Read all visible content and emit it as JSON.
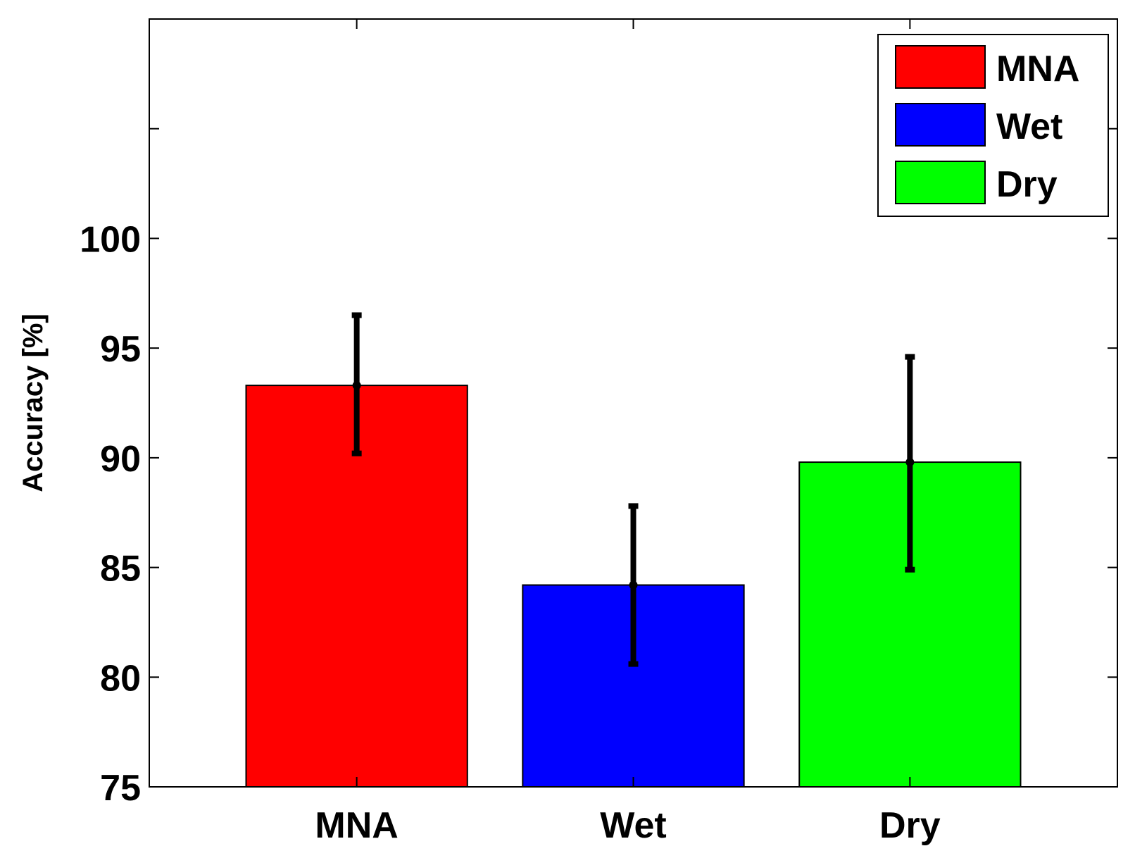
{
  "chart_data": {
    "type": "bar",
    "title": "",
    "xlabel": "",
    "ylabel": "Accuracy [%]",
    "ylim": [
      75,
      110
    ],
    "yticks": [
      75,
      80,
      85,
      90,
      95,
      100
    ],
    "ytick_labels": [
      "75",
      "80",
      "85",
      "90",
      "95",
      "100"
    ],
    "categories": [
      "MNA",
      "Wet",
      "Dry"
    ],
    "values": [
      93.3,
      84.2,
      89.8
    ],
    "error_low": [
      90.2,
      80.6,
      84.9
    ],
    "error_high": [
      96.5,
      87.8,
      94.6
    ],
    "colors": [
      "#ff0000",
      "#0000ff",
      "#00ff00"
    ],
    "legend": {
      "position": "top-right",
      "entries": [
        {
          "label": "MNA",
          "color": "#ff0000"
        },
        {
          "label": "Wet",
          "color": "#0000ff"
        },
        {
          "label": "Dry",
          "color": "#00ff00"
        }
      ]
    },
    "grid": false
  }
}
